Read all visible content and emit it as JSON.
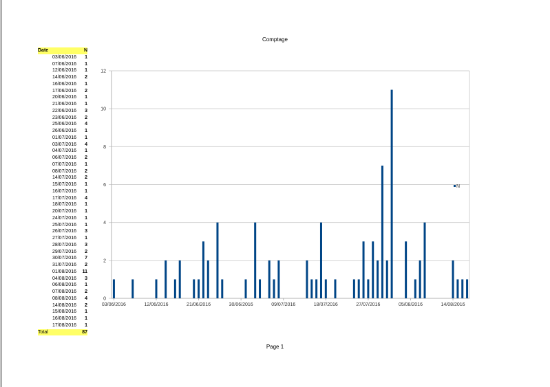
{
  "page": {
    "footer": "Page 1"
  },
  "table": {
    "headers": [
      "Date",
      "N"
    ],
    "rows": [
      [
        "03/06/2016",
        1
      ],
      [
        "07/06/2016",
        1
      ],
      [
        "12/06/2016",
        1
      ],
      [
        "14/06/2016",
        2
      ],
      [
        "16/06/2016",
        1
      ],
      [
        "17/06/2016",
        2
      ],
      [
        "20/06/2016",
        1
      ],
      [
        "21/06/2016",
        1
      ],
      [
        "22/06/2016",
        3
      ],
      [
        "23/06/2016",
        2
      ],
      [
        "25/06/2016",
        4
      ],
      [
        "26/06/2016",
        1
      ],
      [
        "01/07/2016",
        1
      ],
      [
        "03/07/2016",
        4
      ],
      [
        "04/07/2016",
        1
      ],
      [
        "06/07/2016",
        2
      ],
      [
        "07/07/2016",
        1
      ],
      [
        "08/07/2016",
        2
      ],
      [
        "14/07/2016",
        2
      ],
      [
        "15/07/2016",
        1
      ],
      [
        "16/07/2016",
        1
      ],
      [
        "17/07/2016",
        4
      ],
      [
        "18/07/2016",
        1
      ],
      [
        "20/07/2016",
        1
      ],
      [
        "24/07/2016",
        1
      ],
      [
        "25/07/2016",
        1
      ],
      [
        "26/07/2016",
        3
      ],
      [
        "27/07/2016",
        1
      ],
      [
        "28/07/2016",
        3
      ],
      [
        "29/07/2016",
        2
      ],
      [
        "30/07/2016",
        7
      ],
      [
        "31/07/2016",
        2
      ],
      [
        "01/08/2016",
        11
      ],
      [
        "04/08/2016",
        3
      ],
      [
        "06/08/2016",
        1
      ],
      [
        "07/08/2016",
        2
      ],
      [
        "08/08/2016",
        4
      ],
      [
        "14/08/2016",
        2
      ],
      [
        "15/08/2016",
        1
      ],
      [
        "16/08/2016",
        1
      ],
      [
        "17/08/2016",
        1
      ]
    ],
    "total_label": "Total",
    "total": 87,
    "highlight_color": "#ffff66"
  },
  "chart_data": {
    "type": "bar",
    "title": "Comptage",
    "xlabel": "",
    "ylabel": "",
    "x_start": "03/06/2016",
    "x_end": "17/08/2016",
    "x_ticks": [
      "03/06/2016",
      "12/06/2016",
      "21/06/2016",
      "30/06/2016",
      "09/07/2016",
      "18/07/2016",
      "27/07/2016",
      "05/08/2016",
      "14/08/2016"
    ],
    "y_ticks": [
      0,
      2,
      4,
      6,
      8,
      10,
      12
    ],
    "ylim": [
      0,
      12
    ],
    "grid": true,
    "legend": "right",
    "series": [
      {
        "name": "N",
        "color": "#004586"
      }
    ]
  }
}
